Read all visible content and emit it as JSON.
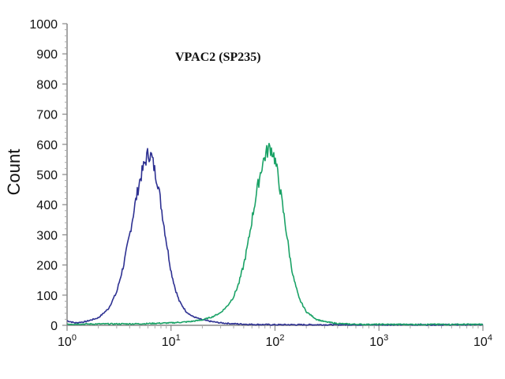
{
  "chart_data": {
    "type": "line",
    "title": "VPAC2 (SP235)",
    "xlabel": "",
    "ylabel": "Count",
    "xscale": "log",
    "xlim": [
      1,
      10000
    ],
    "ylim": [
      0,
      1000
    ],
    "x_ticks": [
      {
        "base": "10",
        "exp": "0",
        "value": 1
      },
      {
        "base": "10",
        "exp": "1",
        "value": 10
      },
      {
        "base": "10",
        "exp": "2",
        "value": 100
      },
      {
        "base": "10",
        "exp": "3",
        "value": 1000
      },
      {
        "base": "10",
        "exp": "4",
        "value": 10000
      }
    ],
    "y_ticks": [
      "0",
      "100",
      "200",
      "300",
      "400",
      "500",
      "600",
      "700",
      "800",
      "900",
      "1000"
    ],
    "grid": false,
    "legend": "none",
    "series": [
      {
        "color": "#2e3192",
        "x": [
          1,
          1.2,
          1.5,
          2,
          2.5,
          3,
          3.5,
          4,
          4.5,
          5,
          5.5,
          6,
          6.5,
          7,
          7.5,
          8,
          9,
          10,
          11,
          12,
          14,
          16,
          20,
          25,
          30,
          40,
          60,
          100,
          10000
        ],
        "y": [
          15,
          8,
          12,
          25,
          55,
          110,
          200,
          300,
          400,
          480,
          530,
          570,
          560,
          510,
          470,
          400,
          280,
          180,
          120,
          80,
          45,
          30,
          18,
          12,
          8,
          5,
          3,
          2,
          2
        ]
      },
      {
        "color": "#1aa266",
        "x": [
          1,
          5,
          10,
          15,
          20,
          25,
          30,
          35,
          40,
          45,
          50,
          55,
          60,
          65,
          70,
          75,
          80,
          85,
          90,
          95,
          100,
          110,
          120,
          130,
          140,
          150,
          170,
          200,
          250,
          300,
          400,
          500,
          700,
          10000
        ],
        "y": [
          4,
          5,
          8,
          12,
          18,
          28,
          42,
          65,
          95,
          140,
          200,
          270,
          350,
          420,
          480,
          530,
          560,
          580,
          590,
          575,
          550,
          470,
          380,
          300,
          220,
          160,
          90,
          45,
          20,
          12,
          6,
          4,
          3,
          3
        ]
      }
    ]
  }
}
